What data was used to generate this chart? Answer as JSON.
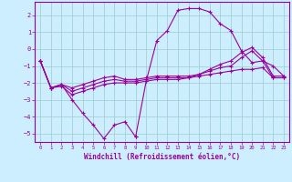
{
  "xlabel": "Windchill (Refroidissement éolien,°C)",
  "xlim": [
    -0.5,
    23.5
  ],
  "ylim": [
    -5.5,
    2.8
  ],
  "yticks": [
    2,
    1,
    0,
    -1,
    -2,
    -3,
    -4,
    -5
  ],
  "xticks": [
    0,
    1,
    2,
    3,
    4,
    5,
    6,
    7,
    8,
    9,
    10,
    11,
    12,
    13,
    14,
    15,
    16,
    17,
    18,
    19,
    20,
    21,
    22,
    23
  ],
  "bg_color": "#cceeff",
  "line_color": "#990099",
  "grid_color": "#99cccc",
  "curve1_x": [
    0,
    1,
    2,
    3,
    4,
    5,
    6,
    7,
    8,
    9
  ],
  "curve1_y": [
    -0.7,
    -2.3,
    -2.1,
    -3.0,
    -3.8,
    -4.5,
    -5.3,
    -4.5,
    -4.3,
    -5.2
  ],
  "curve2_x": [
    9,
    10,
    11,
    12,
    13,
    14,
    15,
    16,
    17,
    18,
    19,
    20,
    21,
    22,
    23
  ],
  "curve2_y": [
    -5.2,
    -1.9,
    0.5,
    1.1,
    2.3,
    2.4,
    2.4,
    2.2,
    1.5,
    1.1,
    -0.1,
    -0.8,
    -0.7,
    -1.0,
    -1.6
  ],
  "curve3_x": [
    0,
    1,
    2,
    3,
    4,
    5,
    6,
    7,
    8,
    9,
    10,
    11,
    12,
    13,
    14,
    15,
    16,
    17,
    18,
    19,
    20,
    21,
    22,
    23
  ],
  "curve3_y": [
    -0.7,
    -2.3,
    -2.2,
    -2.7,
    -2.5,
    -2.3,
    -2.1,
    -2.0,
    -2.0,
    -2.0,
    -1.9,
    -1.8,
    -1.8,
    -1.8,
    -1.7,
    -1.6,
    -1.5,
    -1.4,
    -1.3,
    -1.2,
    -1.2,
    -1.1,
    -1.7,
    -1.7
  ],
  "curve4_x": [
    0,
    1,
    2,
    3,
    4,
    5,
    6,
    7,
    8,
    9,
    10,
    11,
    12,
    13,
    14,
    15,
    16,
    17,
    18,
    19,
    20,
    21,
    22,
    23
  ],
  "curve4_y": [
    -0.7,
    -2.3,
    -2.1,
    -2.5,
    -2.3,
    -2.1,
    -1.9,
    -1.8,
    -1.9,
    -1.9,
    -1.8,
    -1.7,
    -1.7,
    -1.7,
    -1.7,
    -1.5,
    -1.3,
    -1.1,
    -1.0,
    -0.5,
    -0.1,
    -0.7,
    -1.7,
    -1.7
  ],
  "curve5_x": [
    0,
    1,
    2,
    3,
    4,
    5,
    6,
    7,
    8,
    9,
    10,
    11,
    12,
    13,
    14,
    15,
    16,
    17,
    18,
    19,
    20,
    21,
    22,
    23
  ],
  "curve5_y": [
    -0.7,
    -2.3,
    -2.1,
    -2.3,
    -2.1,
    -1.9,
    -1.7,
    -1.6,
    -1.8,
    -1.8,
    -1.7,
    -1.6,
    -1.6,
    -1.6,
    -1.6,
    -1.5,
    -1.2,
    -0.9,
    -0.7,
    -0.2,
    0.1,
    -0.5,
    -1.6,
    -1.6
  ]
}
